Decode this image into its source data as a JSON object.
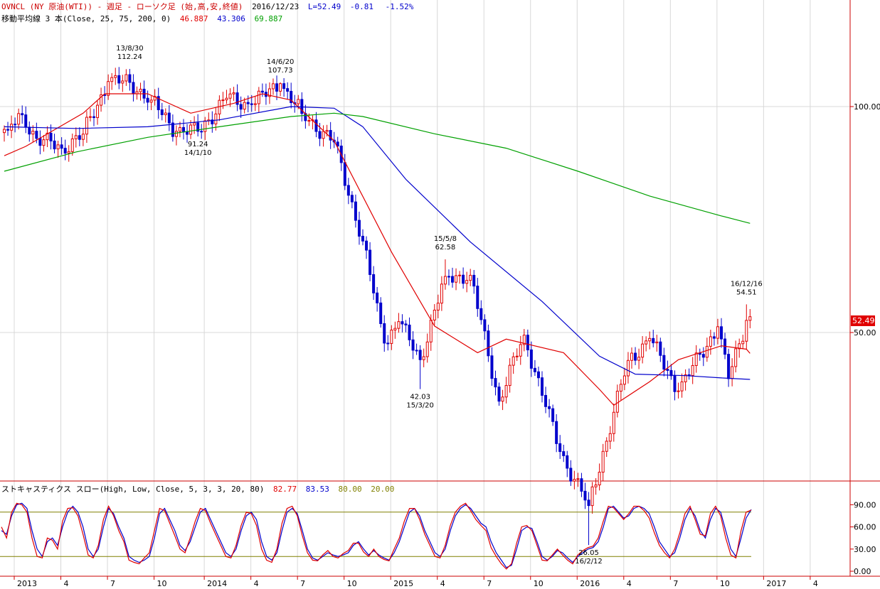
{
  "header": {
    "line1": {
      "symbol": "OVNCL (NY 原油(WTI)) - 週足 - ローソク足 (始,高,安,終値)",
      "date": "2016/12/23",
      "last": "L=52.49",
      "change": "-0.81",
      "pct": "-1.52%"
    },
    "line2": {
      "label": "移動平均線 3 本(Close, 25, 75, 200, 0)",
      "ma25": "46.887",
      "ma75": "43.306",
      "ma200": "69.887"
    },
    "stoch": {
      "label": "ストキャスティクス スロー(High, Low, Close, 5, 3, 3, 20, 80)",
      "k": "82.77",
      "d": "83.53",
      "upper": "80.00",
      "lower": "20.00"
    }
  },
  "colors": {
    "up": "#e00000",
    "down": "#0000cc",
    "ma25": "#e00000",
    "ma75": "#0000cc",
    "ma200": "#00a000",
    "grid": "#d8d8d8",
    "axis": "#cc0000",
    "level": "#808000",
    "last_badge": "#e00000"
  },
  "price_axis": {
    "ticks": [
      "100.00",
      "50.00"
    ],
    "last_badge": "52.49"
  },
  "stoch_axis": {
    "ticks": [
      "90.00",
      "60.00",
      "30.00",
      "0.00"
    ]
  },
  "date_axis": [
    "2013",
    "4",
    "7",
    "10",
    "2014",
    "4",
    "7",
    "10",
    "2015",
    "4",
    "7",
    "10",
    "2016",
    "4",
    "7",
    "10",
    "2017",
    "4"
  ],
  "annotations": [
    {
      "date": "13/8/30",
      "price": "112.24"
    },
    {
      "date": "14/6/20",
      "price": "107.73"
    },
    {
      "date": "14/1/10",
      "price": "91.24"
    },
    {
      "date": "15/5/8",
      "price": "62.58"
    },
    {
      "date": "15/3/20",
      "price": "42.03"
    },
    {
      "date": "16/12/16",
      "price": "54.51"
    },
    {
      "date": "16/2/12",
      "price": "26.05"
    }
  ],
  "chart_data": [
    {
      "type": "candlestick",
      "title": "OVNCL (NY 原油(WTI)) - 週足 - ローソク足 (始,高,安,終値)",
      "scale": "log",
      "x_range": [
        "2012-12-28",
        "2016-12-23"
      ],
      "period": "weekly",
      "ohlc_anchors": [
        {
          "date": "2013-01-04",
          "close": 93.0
        },
        {
          "date": "2013-02-01",
          "close": 97.5
        },
        {
          "date": "2013-03-01",
          "close": 90.7
        },
        {
          "date": "2013-04-19",
          "close": 88.0
        },
        {
          "date": "2013-05-31",
          "close": 91.9
        },
        {
          "date": "2013-07-19",
          "close": 108.0
        },
        {
          "date": "2013-08-30",
          "high": 112.24,
          "close": 107.7
        },
        {
          "date": "2013-10-11",
          "close": 102.0
        },
        {
          "date": "2013-11-29",
          "close": 92.7
        },
        {
          "date": "2014-01-10",
          "low": 91.24,
          "close": 92.7
        },
        {
          "date": "2014-03-07",
          "close": 102.6
        },
        {
          "date": "2014-04-25",
          "close": 100.6
        },
        {
          "date": "2014-06-20",
          "high": 107.73,
          "close": 107.3
        },
        {
          "date": "2014-08-01",
          "close": 97.9
        },
        {
          "date": "2014-10-03",
          "close": 89.7
        },
        {
          "date": "2014-11-28",
          "close": 66.2
        },
        {
          "date": "2015-01-09",
          "close": 48.4
        },
        {
          "date": "2015-02-06",
          "close": 51.7
        },
        {
          "date": "2015-03-20",
          "low": 42.03,
          "close": 46.0
        },
        {
          "date": "2015-05-08",
          "high": 62.58,
          "close": 59.4
        },
        {
          "date": "2015-06-26",
          "close": 59.6
        },
        {
          "date": "2015-08-21",
          "close": 40.5
        },
        {
          "date": "2015-10-09",
          "close": 49.6
        },
        {
          "date": "2015-12-18",
          "close": 34.7
        },
        {
          "date": "2016-02-12",
          "low": 26.05,
          "close": 29.4
        },
        {
          "date": "2016-04-29",
          "close": 45.9
        },
        {
          "date": "2016-06-10",
          "close": 49.1
        },
        {
          "date": "2016-08-05",
          "close": 41.8
        },
        {
          "date": "2016-10-21",
          "close": 50.9
        },
        {
          "date": "2016-11-11",
          "close": 43.4
        },
        {
          "date": "2016-12-16",
          "high": 54.51,
          "close": 51.9
        },
        {
          "date": "2016-12-23",
          "close": 52.49
        }
      ],
      "moving_averages": [
        {
          "name": "MA25",
          "period": 25,
          "last": 46.887,
          "points": [
            [
              0,
              86
            ],
            [
              6,
              88.5
            ],
            [
              22,
              98
            ],
            [
              28,
              104
            ],
            [
              40,
              104
            ],
            [
              52,
              98
            ],
            [
              64,
              101
            ],
            [
              72,
              104
            ],
            [
              80,
              102
            ],
            [
              92,
              90
            ],
            [
              108,
              64
            ],
            [
              120,
              51
            ],
            [
              132,
              47
            ],
            [
              140,
              49
            ],
            [
              156,
              47
            ],
            [
              166,
              42
            ],
            [
              170,
              40
            ],
            [
              180,
              43
            ],
            [
              188,
              46
            ],
            [
              200,
              48
            ],
            [
              207,
              47.5
            ],
            [
              208,
              46.9
            ]
          ]
        },
        {
          "name": "MA75",
          "period": 75,
          "last": 43.306,
          "points": [
            [
              0,
              94
            ],
            [
              20,
              93.5
            ],
            [
              40,
              94
            ],
            [
              60,
              96
            ],
            [
              80,
              100
            ],
            [
              92,
              99.5
            ],
            [
              100,
              94
            ],
            [
              112,
              80
            ],
            [
              130,
              66
            ],
            [
              150,
              55
            ],
            [
              166,
              46.5
            ],
            [
              176,
              44
            ],
            [
              190,
              43.8
            ],
            [
              200,
              43.5
            ],
            [
              208,
              43.3
            ]
          ]
        },
        {
          "name": "MA200",
          "period": 200,
          "last": 69.887,
          "points": [
            [
              0,
              82
            ],
            [
              20,
              87
            ],
            [
              40,
              91
            ],
            [
              60,
              94
            ],
            [
              80,
              97
            ],
            [
              92,
              98
            ],
            [
              100,
              97
            ],
            [
              120,
              92
            ],
            [
              140,
              88
            ],
            [
              160,
              82
            ],
            [
              180,
              76
            ],
            [
              200,
              71.5
            ],
            [
              208,
              69.9
            ]
          ]
        }
      ],
      "y_ticks": [
        100,
        50
      ],
      "last": 52.49
    },
    {
      "type": "line",
      "title": "ストキャスティクス スロー(High, Low, Close, 5, 3, 3, 20, 80)",
      "ylim": [
        0,
        100
      ],
      "y_ticks": [
        90,
        60,
        30,
        0
      ],
      "levels": [
        80,
        20
      ],
      "series": [
        {
          "name": "%D",
          "color": "#0000cc",
          "last": 83.53,
          "values": [
            55,
            50,
            75,
            90,
            92,
            85,
            55,
            30,
            20,
            40,
            45,
            35,
            60,
            80,
            88,
            80,
            60,
            30,
            20,
            30,
            60,
            85,
            78,
            60,
            45,
            20,
            15,
            12,
            15,
            20,
            45,
            78,
            85,
            70,
            55,
            35,
            28,
            40,
            60,
            80,
            85,
            70,
            55,
            40,
            25,
            20,
            30,
            55,
            75,
            80,
            70,
            40,
            20,
            15,
            25,
            55,
            80,
            85,
            78,
            55,
            30,
            18,
            15,
            20,
            25,
            22,
            20,
            22,
            25,
            35,
            40,
            30,
            22,
            28,
            22,
            18,
            15,
            25,
            40,
            60,
            80,
            85,
            75,
            55,
            40,
            25,
            20,
            30,
            55,
            75,
            85,
            90,
            85,
            75,
            65,
            60,
            40,
            25,
            15,
            5,
            8,
            30,
            55,
            60,
            58,
            40,
            20,
            15,
            20,
            28,
            25,
            18,
            12,
            20,
            25,
            30,
            32,
            40,
            60,
            85,
            88,
            80,
            72,
            75,
            85,
            88,
            85,
            78,
            60,
            40,
            30,
            20,
            25,
            45,
            70,
            85,
            75,
            55,
            45,
            70,
            85,
            80,
            55,
            30,
            20,
            45,
            72,
            83.53
          ]
        },
        {
          "name": "%K",
          "color": "#e00000",
          "last": 82.77,
          "values": [
            60,
            45,
            80,
            92,
            90,
            80,
            45,
            20,
            18,
            45,
            42,
            30,
            68,
            85,
            86,
            75,
            50,
            22,
            18,
            35,
            70,
            88,
            75,
            55,
            40,
            15,
            12,
            10,
            18,
            25,
            55,
            85,
            82,
            65,
            48,
            30,
            25,
            45,
            68,
            85,
            82,
            65,
            50,
            35,
            20,
            18,
            35,
            62,
            80,
            78,
            62,
            30,
            15,
            12,
            30,
            65,
            85,
            88,
            75,
            48,
            25,
            15,
            14,
            22,
            28,
            20,
            18,
            24,
            28,
            38,
            38,
            26,
            20,
            30,
            20,
            16,
            14,
            30,
            45,
            68,
            85,
            85,
            70,
            50,
            35,
            20,
            18,
            35,
            62,
            80,
            88,
            92,
            82,
            70,
            62,
            55,
            32,
            20,
            10,
            3,
            10,
            38,
            60,
            62,
            55,
            35,
            15,
            14,
            22,
            30,
            22,
            15,
            10,
            22,
            28,
            32,
            34,
            45,
            68,
            88,
            86,
            78,
            70,
            78,
            88,
            88,
            82,
            72,
            52,
            35,
            25,
            18,
            30,
            52,
            78,
            88,
            70,
            50,
            48,
            78,
            88,
            75,
            45,
            22,
            18,
            55,
            80,
            82.77
          ]
        }
      ]
    }
  ]
}
